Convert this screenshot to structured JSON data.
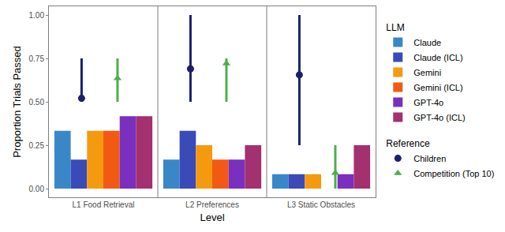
{
  "chart_data": {
    "type": "bar",
    "x_label": "Level",
    "y_label": "Proportion Trials Passed",
    "categories": [
      "L1 Food Retrieval",
      "L2 Preferences",
      "L3 Static Obstacles"
    ],
    "ylim": [
      -0.05,
      1.05
    ],
    "yticks": [
      {
        "value": 0,
        "label": "0.00"
      },
      {
        "value": 0.25,
        "label": "0.25"
      },
      {
        "value": 0.5,
        "label": "0.50"
      },
      {
        "value": 0.75,
        "label": "0.75"
      },
      {
        "value": 1,
        "label": "1.00"
      }
    ],
    "grid": false,
    "legend": "right",
    "legend_titles": {
      "reference": "Reference",
      "bars": "LLM"
    },
    "reference_series": [
      {
        "name": "Children",
        "color": "#1b1f6b",
        "marker": "circle",
        "values": [
          0.52,
          0.69,
          0.655
        ],
        "lower": [
          0.5,
          0.5,
          0.25
        ],
        "upper": [
          0.75,
          1.0,
          1.0
        ]
      },
      {
        "name": "Competition (Top 10)",
        "color": "#4daf4a",
        "marker": "triangle-up",
        "values": [
          0.635,
          0.72,
          0.09
        ],
        "lower": [
          0.5,
          0.5,
          0.0
        ],
        "upper": [
          0.75,
          0.75,
          0.25
        ]
      }
    ],
    "series": [
      {
        "name": "Claude",
        "color": "#3a87c8",
        "values": [
          0.333,
          0.167,
          0.083
        ]
      },
      {
        "name": "Claude (ICL)",
        "color": "#3a4bb8",
        "values": [
          0.167,
          0.333,
          0.083
        ]
      },
      {
        "name": "Gemini",
        "color": "#f59a0e",
        "values": [
          0.333,
          0.25,
          0.083
        ]
      },
      {
        "name": "Gemini (ICL)",
        "color": "#f25a14",
        "values": [
          0.333,
          0.167,
          0.0
        ]
      },
      {
        "name": "GPT-4o",
        "color": "#7a2fbf",
        "values": [
          0.417,
          0.167,
          0.083
        ]
      },
      {
        "name": "GPT-4o (ICL)",
        "color": "#a3306f",
        "values": [
          0.417,
          0.25,
          0.25
        ]
      }
    ]
  }
}
